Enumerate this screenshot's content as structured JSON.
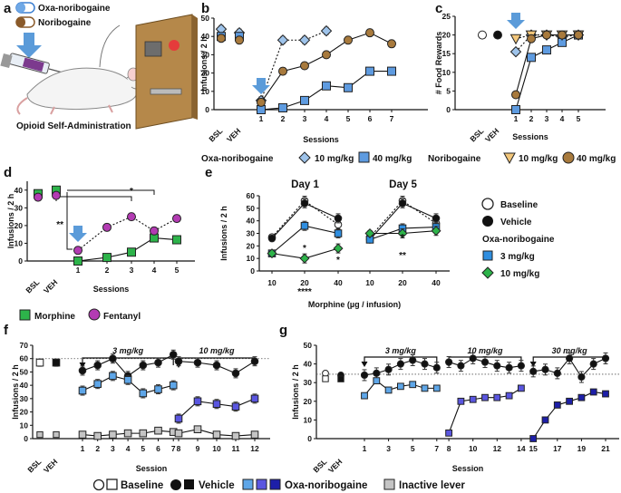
{
  "figure": {
    "panel_labels": [
      "a",
      "b",
      "c",
      "d",
      "e",
      "f",
      "g"
    ],
    "legend_top": {
      "oxa": "Oxa-noribogaine",
      "nori": "Noribogaine"
    },
    "panel_a_caption": "Opioid Self-Administration",
    "legend_bc": {
      "oxa_title": "Oxa-noribogaine",
      "oxa_10": "10 mg/kg",
      "oxa_40": "40 mg/kg",
      "nori_title": "Noribogaine",
      "nori_10": "10 mg/kg",
      "nori_40": "40 mg/kg"
    },
    "legend_d": {
      "morphine": "Morphine",
      "fentanyl": "Fentanyl"
    },
    "legend_e": {
      "baseline": "Baseline",
      "vehicle": "Vehicle",
      "oxa_title": "Oxa-noribogaine",
      "d3": "3 mg/kg",
      "d10": "10 mg/kg"
    },
    "legend_fg": {
      "baseline": "Baseline",
      "vehicle": "Vehicle",
      "oxa": "Oxa-noribogaine",
      "inactive": "Inactive lever"
    },
    "colors": {
      "light_blue": "#9ec3ea",
      "blue": "#3d8ee0",
      "green": "#2db34a",
      "purple": "#b33bb3",
      "tan": "#f2c67a",
      "brown": "#a87a3d",
      "dark_navy": "#1d1fa8",
      "mid_purple": "#5a56e0",
      "grey": "#c4c4c4"
    }
  },
  "chart_data": [
    {
      "id": "b",
      "type": "line",
      "ylabel": "Infusions / 2 h",
      "xlabel": "Sessions",
      "x_ticks": [
        "BSL",
        "VEH",
        "1",
        "2",
        "3",
        "4",
        "5",
        "6",
        "7"
      ],
      "y_ticks": [
        "0",
        "10",
        "20",
        "30",
        "40",
        "50"
      ],
      "ylim": [
        0,
        50
      ],
      "series": [
        {
          "name": "Oxa-noribogaine 10 mg/kg",
          "x": [
            "1",
            "2",
            "3",
            "4"
          ],
          "values": [
            5,
            38,
            38,
            43
          ],
          "bsl": 44,
          "veh": 42
        },
        {
          "name": "Oxa-noribogaine 40 mg/kg",
          "x": [
            "1",
            "2",
            "3",
            "4",
            "5",
            "6",
            "7"
          ],
          "values": [
            0,
            1,
            5,
            13,
            12,
            21,
            21
          ],
          "bsl": 40,
          "veh": 40
        },
        {
          "name": "Noribogaine 40 mg/kg",
          "x": [
            "1",
            "2",
            "3",
            "4",
            "5",
            "6",
            "7"
          ],
          "values": [
            4,
            21,
            24,
            30,
            38,
            42,
            36
          ],
          "bsl": 39,
          "veh": 38
        }
      ]
    },
    {
      "id": "c",
      "type": "line",
      "ylabel": "# Food Rewards",
      "xlabel": "Sessions",
      "x_ticks": [
        "BSL",
        "VEH",
        "1",
        "2",
        "3",
        "4",
        "5"
      ],
      "y_ticks": [
        "0",
        "5",
        "10",
        "15",
        "20",
        "25"
      ],
      "ylim": [
        0,
        25
      ],
      "series": [
        {
          "name": "Oxa-noribogaine 10 mg/kg",
          "x": [
            "1",
            "2",
            "3",
            "4",
            "5"
          ],
          "values": [
            15.5,
            20,
            20,
            19.5,
            20
          ]
        },
        {
          "name": "Oxa-noribogaine 40 mg/kg",
          "x": [
            "1",
            "2",
            "3",
            "4",
            "5"
          ],
          "values": [
            0,
            14,
            16,
            18,
            20
          ]
        },
        {
          "name": "Noribogaine 10 mg/kg",
          "x": [
            "1",
            "2",
            "3",
            "4",
            "5"
          ],
          "values": [
            19,
            20,
            20,
            20,
            20
          ]
        },
        {
          "name": "Noribogaine 40 mg/kg",
          "x": [
            "1",
            "2",
            "3",
            "4",
            "5"
          ],
          "values": [
            4,
            19,
            20,
            20,
            20
          ]
        },
        {
          "name": "Baseline",
          "x": [
            "BSL"
          ],
          "values": [
            20
          ]
        },
        {
          "name": "Vehicle",
          "x": [
            "VEH"
          ],
          "values": [
            20
          ]
        }
      ]
    },
    {
      "id": "d",
      "type": "line",
      "ylabel": "Infusions / 2 h",
      "xlabel": "Sessions",
      "x_ticks": [
        "BSL",
        "VEH",
        "1",
        "2",
        "3",
        "4",
        "5"
      ],
      "y_ticks": [
        "0",
        "10",
        "20",
        "30",
        "40"
      ],
      "ylim": [
        0,
        45
      ],
      "annotations": [
        "*",
        "**"
      ],
      "series": [
        {
          "name": "Morphine",
          "x": [
            "BSL",
            "VEH",
            "1",
            "2",
            "3",
            "4",
            "5"
          ],
          "values": [
            38,
            40,
            0,
            2,
            5,
            13,
            12
          ]
        },
        {
          "name": "Fentanyl",
          "x": [
            "BSL",
            "VEH",
            "1",
            "2",
            "3",
            "4",
            "5"
          ],
          "values": [
            36,
            37,
            6,
            19,
            25,
            17,
            24
          ]
        }
      ]
    },
    {
      "id": "e",
      "type": "line",
      "ylabel": "Infusions / 2 h",
      "xlabel": "Morphine (µg / infusion)",
      "subtitles": [
        "Day 1",
        "Day 5"
      ],
      "x_ticks": [
        "10",
        "20",
        "40"
      ],
      "y_ticks": [
        "0",
        "10",
        "20",
        "30",
        "40",
        "50",
        "60"
      ],
      "ylim": [
        0,
        60
      ],
      "annotations": [
        "*",
        "*",
        "****",
        "*",
        "**"
      ],
      "series": [
        {
          "name": "Baseline Day 1",
          "values": [
            27,
            56,
            37
          ]
        },
        {
          "name": "Vehicle Day 1",
          "values": [
            26,
            54,
            42
          ]
        },
        {
          "name": "Oxa-noribogaine 3 mg/kg Day 1",
          "values": [
            14,
            36,
            30
          ]
        },
        {
          "name": "Oxa-noribogaine 10 mg/kg Day 1",
          "values": [
            14,
            10,
            18
          ]
        },
        {
          "name": "Baseline Day 5",
          "values": [
            27,
            56,
            38
          ]
        },
        {
          "name": "Vehicle Day 5",
          "values": [
            25,
            54,
            42
          ]
        },
        {
          "name": "Oxa-noribogaine 3 mg/kg Day 5",
          "values": [
            25,
            34,
            35
          ]
        },
        {
          "name": "Oxa-noribogaine 10 mg/kg Day 5",
          "values": [
            30,
            30,
            32
          ]
        }
      ]
    },
    {
      "id": "f",
      "type": "line",
      "ylabel": "Infusions / 2 h",
      "xlabel": "Session",
      "x_ticks": [
        "BSL",
        "VEH",
        "1",
        "2",
        "3",
        "4",
        "5",
        "6",
        "7",
        "8",
        "9",
        "10",
        "11",
        "12"
      ],
      "y_ticks": [
        "0",
        "10",
        "20",
        "30",
        "40",
        "50",
        "60",
        "70"
      ],
      "ylim": [
        0,
        70
      ],
      "dose_annotations": [
        "3 mg/kg",
        "10 mg/kg"
      ],
      "series": [
        {
          "name": "Vehicle",
          "x": [
            "1",
            "2",
            "3",
            "4",
            "5",
            "6",
            "7",
            "8",
            "9",
            "10",
            "11",
            "12"
          ],
          "values": [
            51,
            55,
            60,
            47,
            55,
            57,
            63,
            58,
            57,
            55,
            49,
            58
          ]
        },
        {
          "name": "Oxa-noribogaine",
          "x": [
            "1",
            "2",
            "3",
            "4",
            "5",
            "6",
            "7",
            "8",
            "9",
            "10",
            "11",
            "12"
          ],
          "values": [
            36,
            41,
            47,
            44,
            34,
            37,
            40,
            15,
            28,
            26,
            24,
            30
          ]
        },
        {
          "name": "Inactive lever",
          "x": [
            "1",
            "2",
            "3",
            "4",
            "5",
            "6",
            "7",
            "8",
            "9",
            "10",
            "11",
            "12"
          ],
          "values": [
            3,
            2,
            3,
            4,
            4,
            6,
            5,
            4,
            7,
            3,
            2,
            3
          ]
        },
        {
          "name": "Baseline",
          "x": [
            "BSL"
          ],
          "values": [
            57
          ]
        },
        {
          "name": "Vehicle baseline",
          "x": [
            "VEH"
          ],
          "values": [
            57
          ]
        }
      ]
    },
    {
      "id": "g",
      "type": "line",
      "ylabel": "Infusions / 2 h",
      "xlabel": "Session",
      "x_ticks": [
        "BSL",
        "VEH",
        "1",
        "3",
        "5",
        "7",
        "8",
        "10",
        "12",
        "14",
        "15",
        "17",
        "19",
        "21"
      ],
      "y_ticks": [
        "0",
        "10",
        "20",
        "30",
        "40",
        "50"
      ],
      "ylim": [
        0,
        50
      ],
      "dose_annotations": [
        "3 mg/kg",
        "10 mg/kg",
        "30 mg/kg"
      ],
      "series": [
        {
          "name": "Vehicle",
          "x": [
            1,
            2,
            3,
            4,
            5,
            6,
            7,
            8,
            9,
            10,
            11,
            12,
            13,
            14,
            15,
            16,
            17,
            18,
            19,
            20,
            21
          ],
          "values": [
            34,
            35,
            37,
            40,
            42,
            40,
            38,
            41,
            39,
            43,
            41,
            39,
            38,
            39,
            36,
            37,
            35,
            43,
            33,
            40,
            43
          ]
        },
        {
          "name": "Oxa-noribogaine",
          "x": [
            1,
            2,
            3,
            4,
            5,
            6,
            7,
            8,
            9,
            10,
            11,
            12,
            13,
            14,
            15,
            16,
            17,
            18,
            19,
            20,
            21
          ],
          "values": [
            23,
            31,
            26,
            28,
            29,
            27,
            27,
            3,
            20,
            21,
            22,
            22,
            23,
            27,
            0,
            10,
            18,
            20,
            22,
            25,
            24
          ]
        },
        {
          "name": "Baseline",
          "x": [
            "BSL"
          ],
          "values": [
            34
          ]
        },
        {
          "name": "Vehicle baseline",
          "x": [
            "VEH"
          ],
          "values": [
            31
          ]
        }
      ]
    }
  ]
}
